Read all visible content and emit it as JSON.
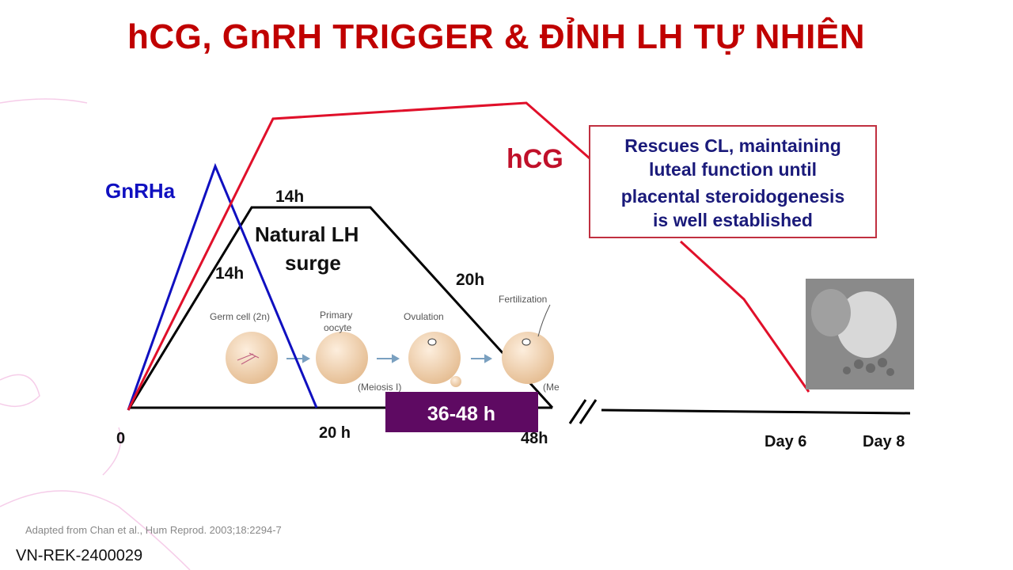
{
  "title": "hCG, GnRH TRIGGER & ĐỈNH LH TỰ NHIÊN",
  "diagram": {
    "series": {
      "gnrha": "GnRHa",
      "hcg": "hCG",
      "lh_line1": "Natural LH",
      "lh_line2": "surge"
    },
    "durations": {
      "lh_rise": "14h",
      "lh_plateau": "14h",
      "lh_fall": "20h"
    },
    "axis": {
      "t0": "0",
      "t20": "20 h",
      "t48": "48h",
      "day6": "Day 6",
      "day8": "Day 8"
    },
    "window_label": "36-48 h",
    "callout": [
      "Rescues CL, maintaining",
      "luteal function until",
      "placental steroidogenesis",
      "is well established"
    ],
    "stages": {
      "germ": "Germ cell (2n)",
      "primary1": "Primary",
      "primary2": "oocyte",
      "ovulation": "Ovulation",
      "meiosis": "(Meiosis I)",
      "fert": "Fertilization",
      "me": "(Me"
    },
    "colors": {
      "hcg": "#e0102a",
      "gnrha": "#1010c0",
      "lh": "#000000",
      "window": "#5e0a62",
      "title": "#c00000"
    }
  },
  "citation": "Adapted from Chan et al., Hum Reprod. 2003;18:2294-7",
  "slide_code": "VN-REK-2400029"
}
